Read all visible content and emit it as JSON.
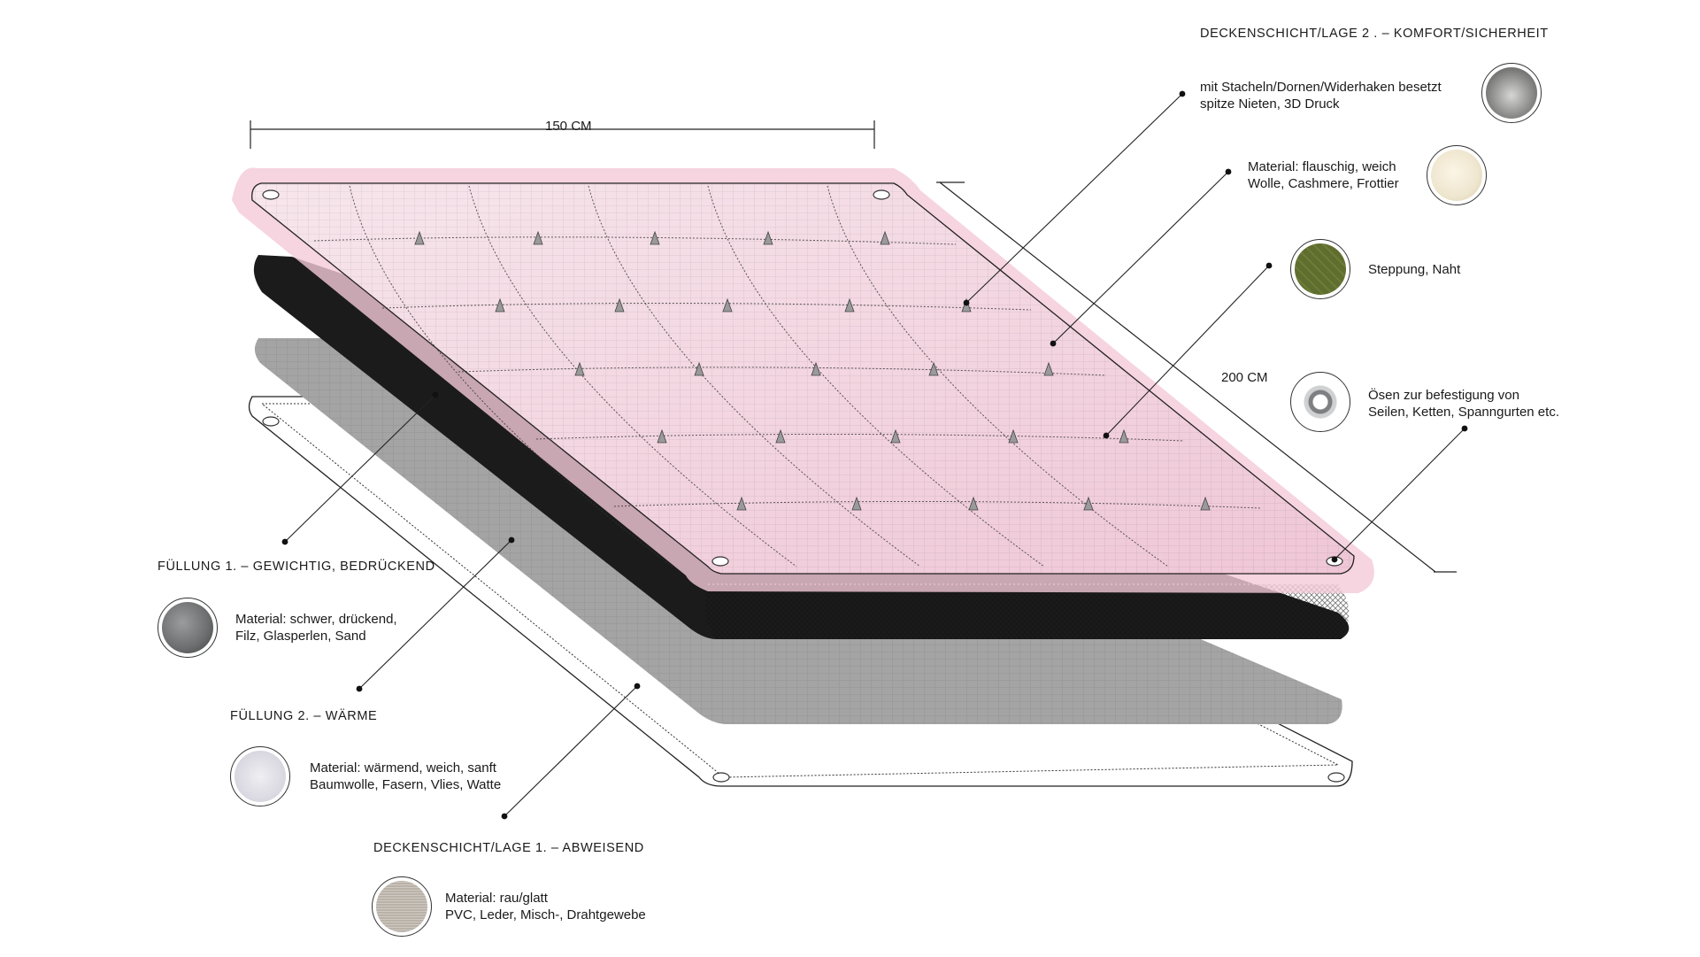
{
  "dimensions": {
    "width_label": "150 CM",
    "length_label": "200 CM"
  },
  "layers": [
    {
      "id": "top",
      "heading": "DECKENSCHICHT/LAGE 2 . – KOMFORT/SICHERHEIT"
    },
    {
      "id": "fill1",
      "heading": "FÜLLUNG 1. – GEWICHTIG, BEDRÜCKEND"
    },
    {
      "id": "fill2",
      "heading": "FÜLLUNG 2. – WÄRME"
    },
    {
      "id": "bottom",
      "heading": "DECKENSCHICHT/LAGE 1. – ABWEISEND"
    }
  ],
  "callouts": {
    "spikes": {
      "line1": "mit Stacheln/Dornen/Widerhaken besetzt",
      "line2": "spitze Nieten, 3D Druck",
      "swatch_color": "#8a8a88"
    },
    "fluffy": {
      "line1": "Material: flauschig, weich",
      "line2": "Wolle, Cashmere, Frottier",
      "swatch_color": "#efe6cf"
    },
    "quilting": {
      "line1": "Steppung, Naht",
      "swatch_color": "#5f6e2e"
    },
    "eyelets": {
      "line1": "Ösen zur befestigung von",
      "line2": "Seilen, Ketten, Spanngurten etc.",
      "swatch_color": "#b7b9bb"
    },
    "heavy": {
      "line1": "Material: schwer, drückend,",
      "line2": "Filz, Glasperlen, Sand",
      "swatch_color": "#6b6d6e"
    },
    "warm": {
      "line1": "Material: wärmend, weich, sanft",
      "line2": "Baumwolle, Fasern, Vlies, Watte",
      "swatch_color": "#d8d6df"
    },
    "rough": {
      "line1": "Material: rau/glatt",
      "line2": "PVC, Leder, Misch-, Drahtgewebe",
      "swatch_color": "#b9b2a9"
    }
  },
  "colors": {
    "top_layer": "#f4dbe4",
    "fur": "#f2c6d6",
    "fill1": "#1c1c1c",
    "fill2": "#9d9d9d",
    "line": "#1a1a1a"
  }
}
